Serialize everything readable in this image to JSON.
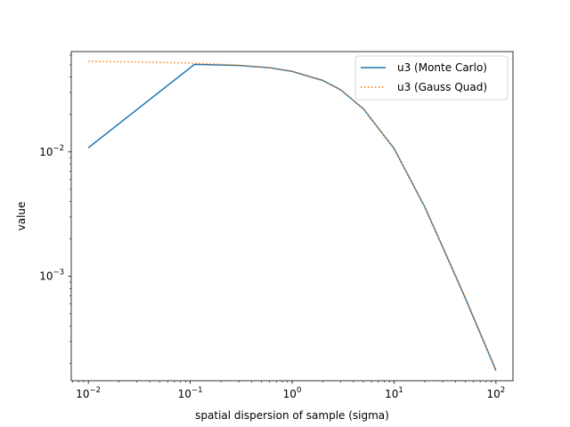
{
  "chart_data": {
    "type": "line",
    "title": "",
    "xlabel": "spatial dispersion of sample (sigma)",
    "ylabel": "value",
    "xscale": "log",
    "yscale": "log",
    "xlim": [
      0.0068,
      147
    ],
    "ylim": [
      0.000145,
      0.064
    ],
    "grid": false,
    "legend_position": "top-right",
    "x_ticks": [
      {
        "value": 0.01,
        "base": "10",
        "exp": "−2"
      },
      {
        "value": 0.1,
        "base": "10",
        "exp": "−1"
      },
      {
        "value": 1,
        "base": "10",
        "exp": "0"
      },
      {
        "value": 10,
        "base": "10",
        "exp": "1"
      },
      {
        "value": 100,
        "base": "10",
        "exp": "2"
      }
    ],
    "y_ticks": [
      {
        "value": 0.001,
        "base": "10",
        "exp": "−3"
      },
      {
        "value": 0.01,
        "base": "10",
        "exp": "−2"
      }
    ],
    "series": [
      {
        "name": "u3 (Monte Carlo)",
        "color": "#1f77b4",
        "style": "solid",
        "x": [
          0.01,
          0.11,
          0.3,
          0.6,
          1,
          2,
          3,
          5,
          10,
          20,
          30,
          50,
          100
        ],
        "y": [
          0.0108,
          0.0505,
          0.0495,
          0.0475,
          0.0444,
          0.0375,
          0.0315,
          0.0222,
          0.01065,
          0.00362,
          0.00172,
          0.00067,
          0.000175
        ]
      },
      {
        "name": "u3 (Gauss Quad)",
        "color": "#ff7f0e",
        "style": "dotted",
        "x": [
          0.01,
          0.03,
          0.1,
          0.3,
          0.6,
          1,
          2,
          3,
          5,
          10,
          20,
          30,
          50,
          100
        ],
        "y": [
          0.0535,
          0.0528,
          0.0518,
          0.0499,
          0.0476,
          0.0445,
          0.0376,
          0.0316,
          0.0223,
          0.01068,
          0.00363,
          0.00173,
          0.00068,
          0.000177
        ]
      }
    ]
  }
}
